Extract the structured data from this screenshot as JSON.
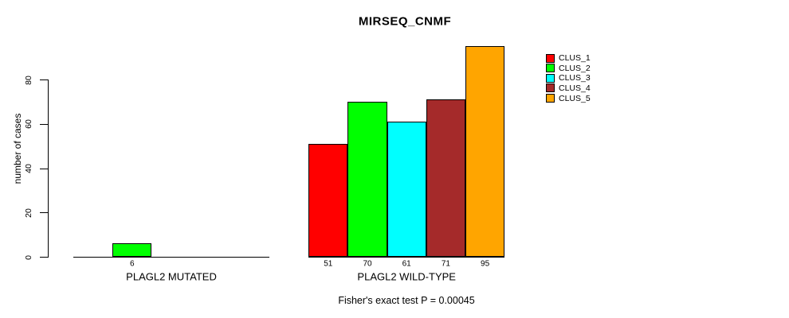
{
  "chart_data": {
    "type": "bar",
    "title": "MIRSEQ_CNMF",
    "ylabel": "number of cases",
    "xlabel": "",
    "yticks": [
      0,
      20,
      40,
      60,
      80
    ],
    "ylim": [
      0,
      95
    ],
    "grid": false,
    "legend_position": "top-right",
    "series_legend": [
      {
        "name": "CLUS_1",
        "color": "#FF0000"
      },
      {
        "name": "CLUS_2",
        "color": "#00FF00"
      },
      {
        "name": "CLUS_3",
        "color": "#00FFFF"
      },
      {
        "name": "CLUS_4",
        "color": "#A52A2A"
      },
      {
        "name": "CLUS_5",
        "color": "#FFA500"
      }
    ],
    "groups": [
      {
        "label": "PLAGL2 MUTATED",
        "values": [
          0,
          6,
          0,
          0,
          0
        ],
        "bar_labels": [
          "",
          "6",
          "",
          "",
          ""
        ]
      },
      {
        "label": "PLAGL2 WILD-TYPE",
        "values": [
          51,
          70,
          61,
          71,
          95
        ],
        "bar_labels": [
          "51",
          "70",
          "61",
          "71",
          "95"
        ]
      }
    ],
    "annotation": "Fisher's exact test P = 0.00045"
  }
}
